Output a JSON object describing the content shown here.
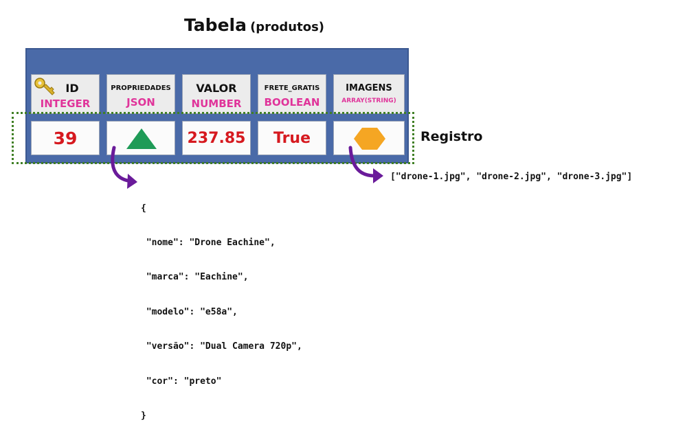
{
  "title": {
    "main": "Tabela",
    "sub": "(produtos)"
  },
  "columns": [
    {
      "name": "ID",
      "type": "INTEGER",
      "icon": "key-icon"
    },
    {
      "name": "PROPRIEDADES",
      "type": "JSON"
    },
    {
      "name": "VALOR",
      "type": "NUMBER"
    },
    {
      "name": "FRETE_GRATIS",
      "type": "BOOLEAN"
    },
    {
      "name": "IMAGENS",
      "type": "ARRAY(STRING)"
    }
  ],
  "record": {
    "id": "39",
    "propriedades_icon": "triangle-icon",
    "valor": "237.85",
    "frete_gratis": "True",
    "imagens_icon": "hexagon-icon"
  },
  "record_label": "Registro",
  "json_lines": [
    "{",
    " \"nome\": \"Drone Eachine\",",
    " \"marca\": \"Eachine\",",
    " \"modelo\": \"e58a\",",
    " \"versão\": \"Dual Camera 720p\",",
    " \"cor\": \"preto\"",
    "}"
  ],
  "array_text": "[\"drone-1.jpg\", \"drone-2.jpg\", \"drone-3.jpg\"]",
  "colors": {
    "panel": "#4a6aa8",
    "type_text": "#e0349a",
    "value_text": "#d6191f",
    "triangle": "#1f9b57",
    "hexagon": "#f5a623",
    "arrow": "#6a1b9a",
    "record_border": "#3f7f24"
  }
}
